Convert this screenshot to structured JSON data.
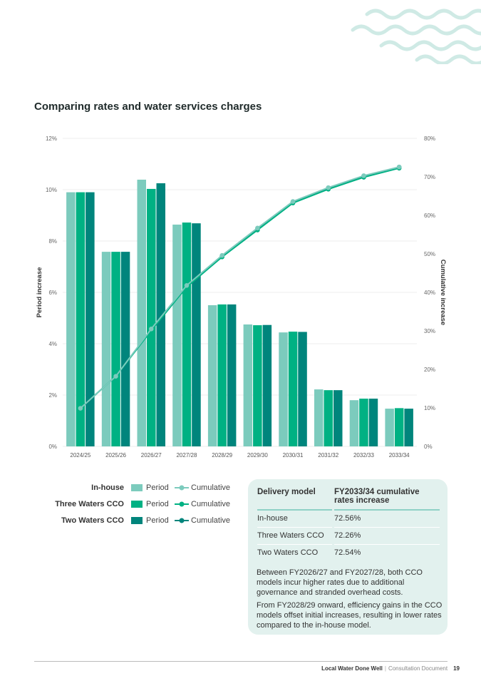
{
  "title": "Comparing rates and water services charges",
  "chart_data": {
    "type": "bar",
    "categories": [
      "2024/25",
      "2025/26",
      "2026/27",
      "2027/28",
      "2028/29",
      "2029/30",
      "2030/31",
      "2031/32",
      "2032/33",
      "2033/34"
    ],
    "ylabel": "Period increase",
    "y2label": "Cumulative increase",
    "ylim": [
      0,
      12
    ],
    "y2lim": [
      0,
      80
    ],
    "yticks": [
      "0%",
      "2%",
      "4%",
      "6%",
      "8%",
      "10%",
      "12%"
    ],
    "y2ticks": [
      "0%",
      "10%",
      "20%",
      "30%",
      "40%",
      "50%",
      "60%",
      "70%",
      "80%"
    ],
    "grid": true,
    "series": [
      {
        "name": "In-house",
        "color": "#7ccbbd",
        "period": [
          9.9,
          7.58,
          10.39,
          8.64,
          5.5,
          4.75,
          4.44,
          2.22,
          1.8,
          1.47
        ],
        "cumulative": [
          9.9,
          18.2,
          30.5,
          41.8,
          49.6,
          56.7,
          63.6,
          67.2,
          70.3,
          72.56
        ]
      },
      {
        "name": "Three Waters CCO",
        "color": "#00b183",
        "period": [
          9.9,
          7.58,
          10.03,
          8.72,
          5.53,
          4.72,
          4.47,
          2.19,
          1.86,
          1.49
        ],
        "cumulative": [
          9.9,
          18.2,
          30.1,
          41.4,
          49.2,
          56.2,
          63.2,
          66.8,
          69.9,
          72.26
        ]
      },
      {
        "name": "Two Waters CCO",
        "color": "#00857c",
        "period": [
          9.9,
          7.58,
          10.25,
          8.69,
          5.53,
          4.73,
          4.46,
          2.19,
          1.86,
          1.47
        ],
        "cumulative": [
          9.9,
          18.2,
          30.3,
          41.6,
          49.4,
          56.4,
          63.4,
          67.0,
          70.2,
          72.54
        ]
      }
    ]
  },
  "legend": {
    "period_label": "Period",
    "cumulative_label": "Cumulative"
  },
  "table": {
    "headers": [
      "Delivery model",
      "FY2033/34 cumulative rates increase"
    ],
    "rows": [
      [
        "In-house",
        "72.56%"
      ],
      [
        "Three Waters CCO",
        "72.26%"
      ],
      [
        "Two Waters CCO",
        "72.54%"
      ]
    ]
  },
  "notes": [
    "Between FY2026/27 and FY2027/28, both CCO models incur higher rates due to additional governance and stranded overhead costs.",
    "From FY2028/29 onward, efficiency gains in the CCO models offset initial increases, resulting in lower rates compared to the in-house model."
  ],
  "footer": {
    "doc": "Local Water Done Well",
    "sub": "Consultation Document",
    "page": "19"
  }
}
